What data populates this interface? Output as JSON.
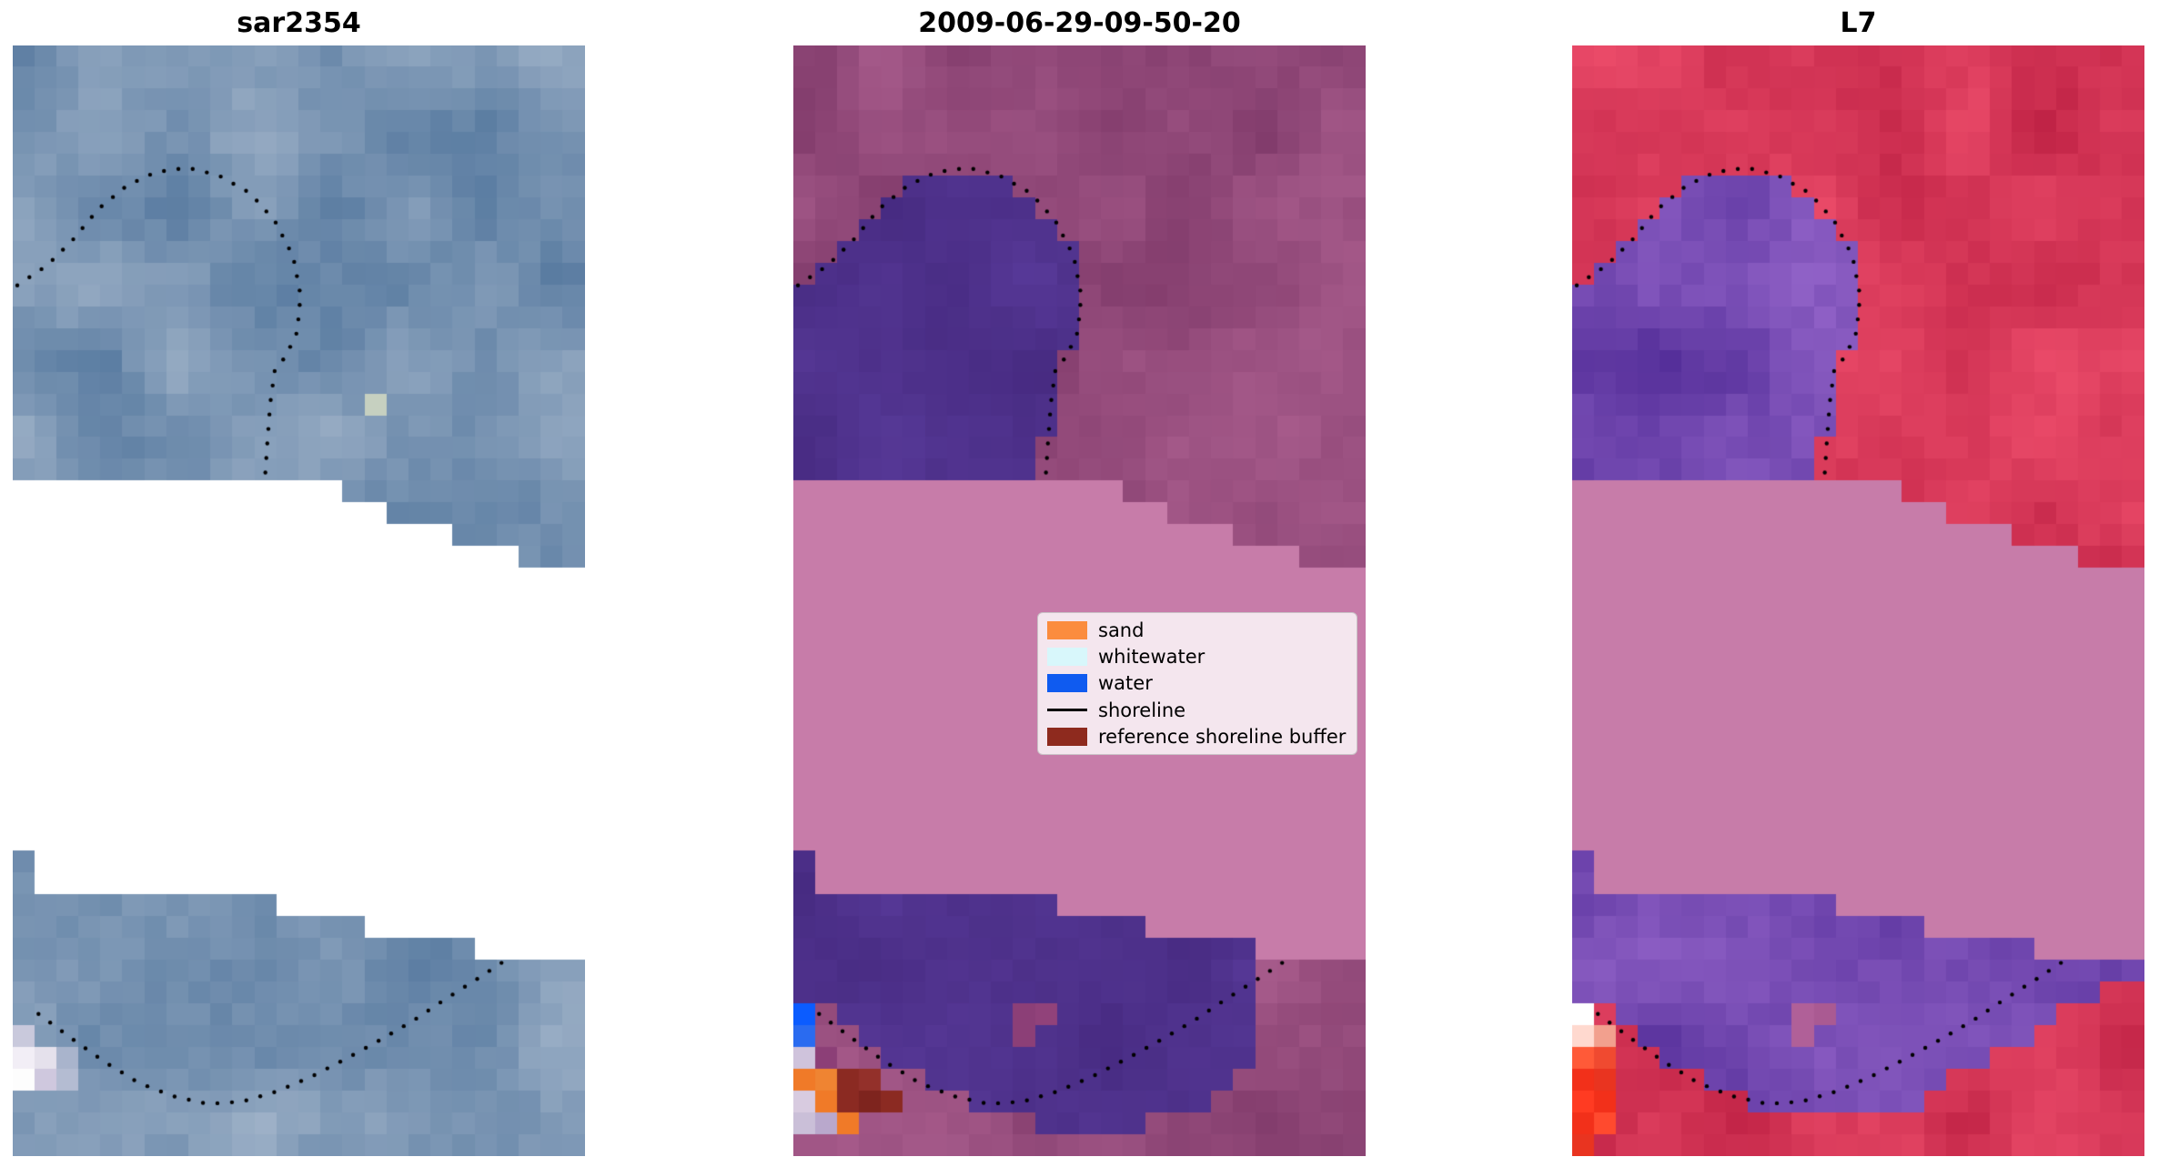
{
  "figure": {
    "background": "#ffffff",
    "panels": [
      {
        "title": "sar2354",
        "seed": 101,
        "bg": {
          "dark": "#56799f",
          "light": "#9fb2c8"
        },
        "regions": [
          {
            "polygon": "band_polygon",
            "color": "#ffffff"
          }
        ],
        "specials": [
          {
            "c": 16,
            "r": 16,
            "color": "#c6d0c0"
          },
          {
            "c": 0,
            "r": 45,
            "color": "#c9c9dc"
          },
          {
            "c": 0,
            "r": 46,
            "color": "#f2eef6"
          },
          {
            "c": 1,
            "r": 46,
            "color": "#e5e1ec"
          },
          {
            "c": 2,
            "r": 46,
            "color": "#a9b4cc"
          },
          {
            "c": 0,
            "r": 47,
            "color": "#fdfdfd"
          },
          {
            "c": 1,
            "r": 47,
            "color": "#cfc8de"
          },
          {
            "c": 2,
            "r": 47,
            "color": "#b4bcd2"
          }
        ],
        "shorelines": [
          "shoreline_upper",
          "shoreline_lower"
        ]
      },
      {
        "title": "2009-06-29-09-50-20",
        "seed": 202,
        "bg": {
          "dark": "#7c3767",
          "light": "#a85c8c"
        },
        "regions": [
          {
            "polygon": "upper_blob_polygon",
            "dark": "#45297f",
            "light": "#583a99"
          },
          {
            "polygon": "lower_blob_mid_polygon",
            "dark": "#45297f",
            "light": "#583a99"
          },
          {
            "polygon": "band_polygon",
            "color": "#c77ca9"
          }
        ],
        "specials": [
          {
            "c": 0,
            "r": 44,
            "color": "#0b5cff"
          },
          {
            "c": 0,
            "r": 45,
            "color": "#2a6bf0"
          },
          {
            "c": 0,
            "r": 46,
            "color": "#cfc3dc"
          },
          {
            "c": 1,
            "r": 46,
            "color": "#8c3f77"
          },
          {
            "c": 0,
            "r": 47,
            "color": "#f07a28"
          },
          {
            "c": 1,
            "r": 47,
            "color": "#ef8432"
          },
          {
            "c": 2,
            "r": 47,
            "color": "#8b2a22"
          },
          {
            "c": 3,
            "r": 47,
            "color": "#93302a"
          },
          {
            "c": 0,
            "r": 48,
            "color": "#d8cbe0"
          },
          {
            "c": 1,
            "r": 48,
            "color": "#f07a28"
          },
          {
            "c": 2,
            "r": 48,
            "color": "#8b2a22"
          },
          {
            "c": 3,
            "r": 48,
            "color": "#7e241e"
          },
          {
            "c": 4,
            "r": 48,
            "color": "#8b2a22"
          },
          {
            "c": 0,
            "r": 49,
            "color": "#cabfd8"
          },
          {
            "c": 1,
            "r": 49,
            "color": "#b9a8cc"
          },
          {
            "c": 2,
            "r": 49,
            "color": "#f07a28"
          },
          {
            "c": 10,
            "r": 44,
            "color": "#8c3f77"
          },
          {
            "c": 11,
            "r": 44,
            "color": "#91427a"
          },
          {
            "c": 10,
            "r": 45,
            "color": "#8c3f77"
          }
        ],
        "shorelines": [
          "shoreline_upper",
          "shoreline_lower"
        ]
      },
      {
        "title": "L7",
        "seed": 303,
        "bg": {
          "dark": "#bc1f42",
          "light": "#ee4e6c"
        },
        "regions": [
          {
            "polygon": "upper_blob_polygon",
            "dark": "#502b96",
            "light": "#9263c8"
          },
          {
            "polygon": "lower_blob_right_polygon",
            "dark": "#502b96",
            "light": "#9263c8"
          },
          {
            "polygon": "band_polygon",
            "color": "#c77ca9"
          }
        ],
        "specials": [
          {
            "c": 0,
            "r": 44,
            "color": "#ffffff"
          },
          {
            "c": 0,
            "r": 45,
            "color": "#ffd9cf"
          },
          {
            "c": 1,
            "r": 45,
            "color": "#f2a08e"
          },
          {
            "c": 0,
            "r": 46,
            "color": "#ff5a38"
          },
          {
            "c": 1,
            "r": 46,
            "color": "#f04a30"
          },
          {
            "c": 0,
            "r": 47,
            "color": "#f2301a"
          },
          {
            "c": 1,
            "r": 47,
            "color": "#e93420"
          },
          {
            "c": 0,
            "r": 48,
            "color": "#ff3b22"
          },
          {
            "c": 1,
            "r": 48,
            "color": "#f2301a"
          },
          {
            "c": 0,
            "r": 49,
            "color": "#f2301a"
          },
          {
            "c": 1,
            "r": 49,
            "color": "#ff4a2e"
          },
          {
            "c": 0,
            "r": 50,
            "color": "#e93420"
          },
          {
            "c": 10,
            "r": 44,
            "color": "#b06098"
          },
          {
            "c": 11,
            "r": 44,
            "color": "#aa5a92"
          },
          {
            "c": 10,
            "r": 45,
            "color": "#b06098"
          }
        ],
        "shorelines": [
          "shoreline_upper",
          "shoreline_lower"
        ]
      }
    ],
    "geometry": {
      "grid": {
        "cols": 26,
        "rows": 51
      },
      "dot_spacing": 16,
      "dot_radius": 2.2,
      "band_polygon": [
        [
          0,
          0.385
        ],
        [
          0.56,
          0.385
        ],
        [
          0.56,
          0.405
        ],
        [
          0.67,
          0.405
        ],
        [
          0.67,
          0.425
        ],
        [
          0.78,
          0.425
        ],
        [
          0.78,
          0.445
        ],
        [
          0.89,
          0.445
        ],
        [
          0.89,
          0.463
        ],
        [
          1,
          0.463
        ],
        [
          1,
          0.815
        ],
        [
          0.8,
          0.815
        ],
        [
          0.8,
          0.8
        ],
        [
          0.62,
          0.8
        ],
        [
          0.62,
          0.78
        ],
        [
          0.45,
          0.78
        ],
        [
          0.45,
          0.765
        ],
        [
          0.04,
          0.765
        ],
        [
          0.04,
          0.718
        ],
        [
          0,
          0.718
        ]
      ],
      "upper_blob_polygon": [
        [
          0,
          0.213
        ],
        [
          0.055,
          0.198
        ],
        [
          0.1,
          0.178
        ],
        [
          0.145,
          0.148
        ],
        [
          0.19,
          0.126
        ],
        [
          0.245,
          0.115
        ],
        [
          0.3,
          0.112
        ],
        [
          0.355,
          0.118
        ],
        [
          0.41,
          0.133
        ],
        [
          0.455,
          0.158
        ],
        [
          0.485,
          0.19
        ],
        [
          0.5,
          0.225
        ],
        [
          0.495,
          0.258
        ],
        [
          0.475,
          0.278
        ],
        [
          0.455,
          0.29
        ],
        [
          0.448,
          0.32
        ],
        [
          0.443,
          0.355
        ],
        [
          0.44,
          0.387
        ],
        [
          0,
          0.387
        ]
      ],
      "lower_blob_mid_polygon": [
        [
          0,
          0.718
        ],
        [
          0.04,
          0.718
        ],
        [
          0.04,
          0.765
        ],
        [
          0.45,
          0.765
        ],
        [
          0.45,
          0.78
        ],
        [
          0.62,
          0.78
        ],
        [
          0.62,
          0.8
        ],
        [
          0.8,
          0.8
        ],
        [
          0.8,
          0.92
        ],
        [
          0.74,
          0.945
        ],
        [
          0.66,
          0.965
        ],
        [
          0.56,
          0.978
        ],
        [
          0.46,
          0.978
        ],
        [
          0.36,
          0.962
        ],
        [
          0.28,
          0.945
        ],
        [
          0.2,
          0.925
        ],
        [
          0.13,
          0.9
        ],
        [
          0.07,
          0.875
        ],
        [
          0.03,
          0.858
        ],
        [
          0,
          0.85
        ]
      ],
      "lower_blob_right_polygon": [
        [
          0,
          0.718
        ],
        [
          0.04,
          0.718
        ],
        [
          0.04,
          0.765
        ],
        [
          0.45,
          0.765
        ],
        [
          0.45,
          0.78
        ],
        [
          0.62,
          0.78
        ],
        [
          0.62,
          0.8
        ],
        [
          1,
          0.8
        ],
        [
          1,
          0.845
        ],
        [
          0.9,
          0.855
        ],
        [
          0.82,
          0.882
        ],
        [
          0.72,
          0.915
        ],
        [
          0.62,
          0.948
        ],
        [
          0.52,
          0.968
        ],
        [
          0.42,
          0.968
        ],
        [
          0.32,
          0.95
        ],
        [
          0.22,
          0.928
        ],
        [
          0.14,
          0.903
        ],
        [
          0.07,
          0.875
        ],
        [
          0.03,
          0.858
        ],
        [
          0,
          0.85
        ]
      ],
      "shoreline_upper": [
        [
          0.008,
          0.216
        ],
        [
          0.06,
          0.198
        ],
        [
          0.105,
          0.175
        ],
        [
          0.15,
          0.147
        ],
        [
          0.2,
          0.126
        ],
        [
          0.25,
          0.114
        ],
        [
          0.305,
          0.11
        ],
        [
          0.36,
          0.117
        ],
        [
          0.415,
          0.133
        ],
        [
          0.458,
          0.158
        ],
        [
          0.49,
          0.19
        ],
        [
          0.503,
          0.225
        ],
        [
          0.497,
          0.258
        ],
        [
          0.477,
          0.28
        ],
        [
          0.458,
          0.292
        ],
        [
          0.45,
          0.322
        ],
        [
          0.445,
          0.357
        ],
        [
          0.441,
          0.388
        ]
      ],
      "shoreline_lower": [
        [
          0.045,
          0.872
        ],
        [
          0.1,
          0.893
        ],
        [
          0.16,
          0.915
        ],
        [
          0.22,
          0.934
        ],
        [
          0.28,
          0.946
        ],
        [
          0.34,
          0.953
        ],
        [
          0.4,
          0.951
        ],
        [
          0.46,
          0.942
        ],
        [
          0.52,
          0.929
        ],
        [
          0.58,
          0.913
        ],
        [
          0.64,
          0.896
        ],
        [
          0.7,
          0.878
        ],
        [
          0.755,
          0.859
        ],
        [
          0.81,
          0.841
        ],
        [
          0.86,
          0.824
        ]
      ]
    }
  },
  "legend": {
    "entries": [
      {
        "label": "sand",
        "color": "#fb8c3e",
        "swatch": "patch"
      },
      {
        "label": "whitewater",
        "color": "#d8f7fb",
        "swatch": "patch"
      },
      {
        "label": "water",
        "color": "#0f5bf0",
        "swatch": "patch"
      },
      {
        "label": "shoreline",
        "color": "#000000",
        "swatch": "line"
      },
      {
        "label": "reference shoreline buffer",
        "color": "#8e2a1e",
        "swatch": "patch"
      }
    ]
  },
  "chart_data": {
    "type": "heatmap",
    "title": "",
    "panels": [
      {
        "title": "sar2354",
        "content": "Pixelated blue-gray SAR backscatter image; white areas are a no-data mask; dotted black line marks the detected shoreline (an upper loop around a headland and a lower curved beach line)."
      },
      {
        "title": "2009-06-29-09-50-20",
        "content": "Classified satellite scene in magenta tones: dark indigo regions are classified water areas above and below a flat mauve-pink masked band; dotted black mapped shoreline; scattered sand (orange), water (blue) and reference-buffer (dark red) pixels at lower left; legend overlaid."
      },
      {
        "title": "L7",
        "content": "Landsat 7 false-colour scene in crimson/red tones with the same indigo classified regions, mauve-pink masked band, dotted shoreline and bright red/white pixels at lower left."
      }
    ],
    "legend_entries": [
      "sand",
      "whitewater",
      "water",
      "shoreline",
      "reference shoreline buffer"
    ],
    "legend_position": "center-right of middle panel",
    "axes": "none (images shown without axes or ticks)"
  }
}
